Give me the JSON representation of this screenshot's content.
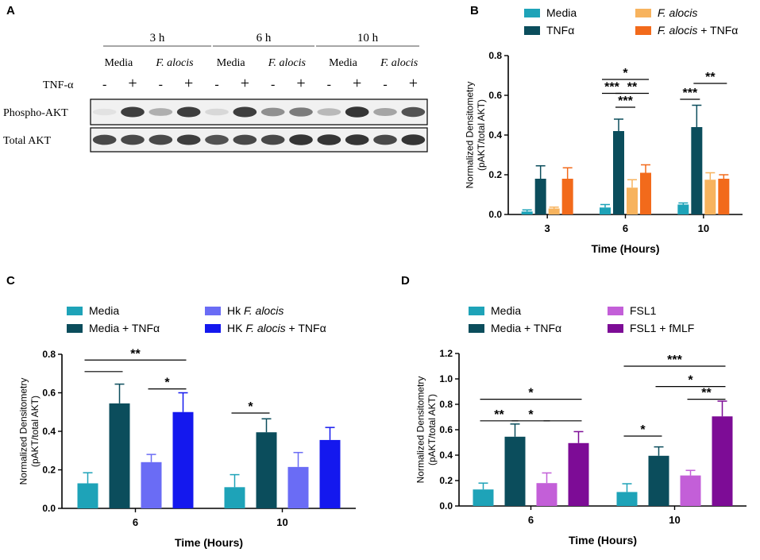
{
  "colors": {
    "media": "#1ea3b8",
    "tnf": "#0b4d5c",
    "f_alocis": "#f7b35e",
    "f_alocis_tnf": "#f26a1b",
    "hk": "#6a6cf5",
    "hk_tnf": "#1418ee",
    "fsl1": "#c35fd8",
    "fsl1_fmlf": "#7d0c96"
  },
  "blot": {
    "panel_label": "A",
    "timepoints": [
      "3 h",
      "6 h",
      "10 h"
    ],
    "lane_groups": [
      "Media",
      "F. alocis",
      "Media",
      "F. alocis",
      "Media",
      "F. alocis"
    ],
    "tnf_label": "TNF-α",
    "tnf_signs": [
      "-",
      "+",
      "-",
      "+",
      "-",
      "+",
      "-",
      "+",
      "-",
      "+",
      "-",
      "+"
    ],
    "rows": [
      "Phospho-AKT",
      "Total AKT"
    ],
    "phospho_intensity": [
      0.05,
      0.85,
      0.3,
      0.85,
      0.1,
      0.85,
      0.45,
      0.55,
      0.25,
      0.9,
      0.35,
      0.75
    ],
    "total_intensity": [
      0.8,
      0.8,
      0.8,
      0.85,
      0.75,
      0.8,
      0.8,
      0.9,
      0.9,
      0.9,
      0.8,
      0.9
    ]
  },
  "chart_data": [
    {
      "panel": "B",
      "type": "bar",
      "categories": [
        "3",
        "6",
        "10"
      ],
      "xlabel": "Time (Hours)",
      "ylabel": [
        "Normalized Densitometry",
        "(pAKT/total AKT)"
      ],
      "ylim": [
        0,
        0.8
      ],
      "yticks": [
        "0.0",
        "0.2",
        "0.4",
        "0.6",
        "0.8"
      ],
      "series": [
        {
          "name": "Media",
          "color": "media",
          "values": [
            0.015,
            0.035,
            0.05
          ],
          "errors": [
            0.008,
            0.015,
            0.008
          ]
        },
        {
          "name": "TNFα",
          "color": "tnf",
          "values": [
            0.18,
            0.42,
            0.44
          ],
          "errors": [
            0.065,
            0.06,
            0.11
          ]
        },
        {
          "name": "F. alocis",
          "color": "f_alocis",
          "values": [
            0.03,
            0.135,
            0.175
          ],
          "errors": [
            0.007,
            0.04,
            0.035
          ]
        },
        {
          "name": "F. alocis + TNFα",
          "color": "f_alocis_tnf",
          "values": [
            0.18,
            0.21,
            0.18
          ],
          "errors": [
            0.055,
            0.04,
            0.02
          ]
        }
      ],
      "legend": [
        {
          "label": "Media",
          "italic": "",
          "suffix": "",
          "color": "media"
        },
        {
          "label": "TNFα",
          "italic": "",
          "suffix": "",
          "color": "tnf"
        },
        {
          "label": "",
          "italic": "F. alocis",
          "suffix": "",
          "color": "f_alocis"
        },
        {
          "label": "",
          "italic": "F. alocis",
          "suffix": " + TNFα",
          "color": "f_alocis_tnf"
        }
      ],
      "significance": [
        {
          "text": "*",
          "cat": 1,
          "from": 0,
          "to": 3,
          "y": 0.68
        },
        {
          "text": "***",
          "cat": 1,
          "from": 0,
          "to": 1,
          "y": 0.61
        },
        {
          "text": "**",
          "cat": 1,
          "from": 1,
          "to": 3,
          "y": 0.61
        },
        {
          "text": "***",
          "cat": 1,
          "from": 1,
          "to": 2,
          "y": 0.54
        },
        {
          "text": "***",
          "cat": 2,
          "from": 0,
          "to": 1,
          "y": 0.58
        },
        {
          "text": "**",
          "cat": 2,
          "from": 1,
          "to": 3,
          "y": 0.66
        }
      ]
    },
    {
      "panel": "C",
      "type": "bar",
      "categories": [
        "6",
        "10"
      ],
      "xlabel": "Time (Hours)",
      "ylabel": [
        "Normalized Densitometry",
        "(pAKT/total AKT)"
      ],
      "ylim": [
        0,
        0.8
      ],
      "yticks": [
        "0.0",
        "0.2",
        "0.4",
        "0.6",
        "0.8"
      ],
      "series": [
        {
          "name": "Media",
          "color": "media",
          "values": [
            0.13,
            0.11
          ],
          "errors": [
            0.055,
            0.065
          ]
        },
        {
          "name": "Media + TNFα",
          "color": "tnf",
          "values": [
            0.545,
            0.395
          ],
          "errors": [
            0.1,
            0.07
          ]
        },
        {
          "name": "Hk F. alocis",
          "color": "hk",
          "values": [
            0.24,
            0.215
          ],
          "errors": [
            0.04,
            0.075
          ]
        },
        {
          "name": "HK F. alocis + TNFα",
          "color": "hk_tnf",
          "values": [
            0.5,
            0.355
          ],
          "errors": [
            0.1,
            0.065
          ]
        }
      ],
      "legend": [
        {
          "label": "Media",
          "italic": "",
          "suffix": "",
          "color": "media"
        },
        {
          "label": "Media + TNFα",
          "italic": "",
          "suffix": "",
          "color": "tnf"
        },
        {
          "label": "Hk ",
          "italic": "F. alocis",
          "suffix": "",
          "color": "hk"
        },
        {
          "label": "HK ",
          "italic": "F. alocis",
          "suffix": " + TNFα",
          "color": "hk_tnf"
        }
      ],
      "significance": [
        {
          "text": "**",
          "cat": 0,
          "from": 0,
          "to": 3,
          "y": 0.77
        },
        {
          "text": "",
          "cat": 0,
          "from": 0,
          "to": 1,
          "y": 0.71
        },
        {
          "text": "*",
          "cat": 0,
          "from": 2,
          "to": 3,
          "y": 0.62
        },
        {
          "text": "*",
          "cat": 1,
          "from": 0,
          "to": 1,
          "y": 0.495
        }
      ]
    },
    {
      "panel": "D",
      "type": "bar",
      "categories": [
        "6",
        "10"
      ],
      "xlabel": "Time (Hours)",
      "ylabel": [
        "Normalized Densitometry",
        "(pAKT/total AKT)"
      ],
      "ylim": [
        0,
        1.2
      ],
      "yticks": [
        "0.0",
        "0.2",
        "0.4",
        "0.6",
        "0.8",
        "1.0",
        "1.2"
      ],
      "series": [
        {
          "name": "Media",
          "color": "media",
          "values": [
            0.13,
            0.11
          ],
          "errors": [
            0.05,
            0.065
          ]
        },
        {
          "name": "Media + TNFα",
          "color": "tnf",
          "values": [
            0.545,
            0.395
          ],
          "errors": [
            0.1,
            0.07
          ]
        },
        {
          "name": "FSL1",
          "color": "fsl1",
          "values": [
            0.18,
            0.24
          ],
          "errors": [
            0.08,
            0.04
          ]
        },
        {
          "name": "FSL1 + fMLF",
          "color": "fsl1_fmlf",
          "values": [
            0.495,
            0.705
          ],
          "errors": [
            0.09,
            0.12
          ]
        }
      ],
      "legend": [
        {
          "label": "Media",
          "italic": "",
          "suffix": "",
          "color": "media"
        },
        {
          "label": "Media + TNFα",
          "italic": "",
          "suffix": "",
          "color": "tnf"
        },
        {
          "label": "FSL1",
          "italic": "",
          "suffix": "",
          "color": "fsl1"
        },
        {
          "label": "FSL1 + fMLF",
          "italic": "",
          "suffix": "",
          "color": "fsl1_fmlf"
        }
      ],
      "significance": [
        {
          "text": "*",
          "cat": 0,
          "from": 0,
          "to": 3,
          "y": 0.84
        },
        {
          "text": "**",
          "cat": 0,
          "from": 0,
          "to": 1,
          "y": 0.67
        },
        {
          "text": "*",
          "cat": 0,
          "from": 1,
          "to": 2,
          "y": 0.67
        },
        {
          "text": "",
          "cat": 0,
          "from": 2,
          "to": 3,
          "y": 0.67
        },
        {
          "text": "***",
          "cat": 1,
          "from": 0,
          "to": 3,
          "y": 1.1
        },
        {
          "text": "*",
          "cat": 1,
          "from": 1,
          "to": 3,
          "y": 0.94
        },
        {
          "text": "**",
          "cat": 1,
          "from": 2,
          "to": 3,
          "y": 0.84
        },
        {
          "text": "*",
          "cat": 1,
          "from": 0,
          "to": 1,
          "y": 0.55
        }
      ]
    }
  ]
}
